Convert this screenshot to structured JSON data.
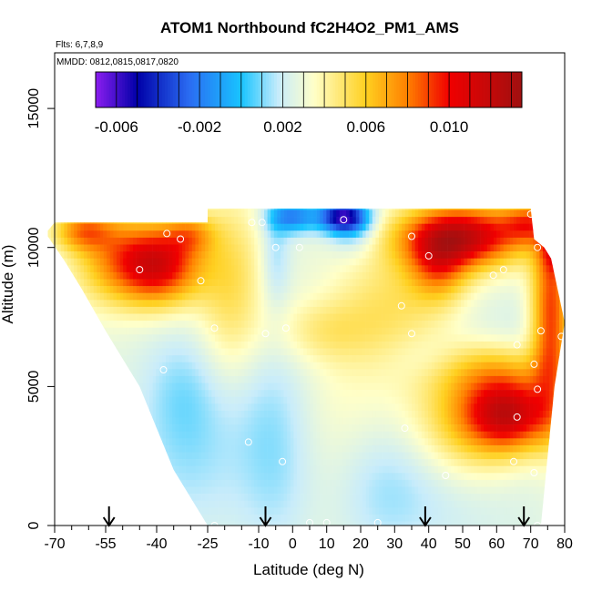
{
  "chart_data": {
    "type": "heatmap",
    "title": "ATOM1 Northbound fC2H4O2_PM1_AMS",
    "flights_label": "Flts: 6,7,8,9",
    "dates_label": "MMDD: 0812,0815,0817,0820",
    "xlabel": "Latitude (deg N)",
    "ylabel": "Altitude (m)",
    "xlim": [
      -70,
      80
    ],
    "ylim": [
      0,
      17000
    ],
    "x_ticks": [
      -70,
      -55,
      -40,
      -25,
      -10,
      0,
      10,
      20,
      30,
      40,
      50,
      60,
      70,
      80
    ],
    "x_tick_labels": [
      "-70",
      "-55",
      "-40",
      "-25",
      "-10",
      "0",
      "10",
      "20",
      "30",
      "40",
      "50",
      "60",
      "70",
      "80"
    ],
    "x_minor_ticks": [
      -65,
      -60,
      -50,
      -45,
      -35,
      -30,
      -20,
      -15,
      -5,
      5,
      15,
      25,
      35,
      45,
      55,
      65,
      75
    ],
    "y_ticks": [
      0,
      5000,
      10000,
      15000
    ],
    "y_tick_labels": [
      "0",
      "5000",
      "10000",
      "15000"
    ],
    "colorbar": {
      "range": [
        -0.007,
        0.0135
      ],
      "ticks": [
        -0.006,
        -0.002,
        0.002,
        0.006,
        0.01
      ],
      "tick_labels": [
        "-0.006",
        "-0.002",
        "0.002",
        "0.006",
        "0.010"
      ],
      "color_stops": [
        {
          "value": -0.007,
          "color": "#8b1ef0"
        },
        {
          "value": -0.005,
          "color": "#0000a8"
        },
        {
          "value": -0.0025,
          "color": "#2a6cf2"
        },
        {
          "value": 0.0,
          "color": "#18c4ff"
        },
        {
          "value": 0.0018,
          "color": "#c8ecfb"
        },
        {
          "value": 0.0035,
          "color": "#ffffc8"
        },
        {
          "value": 0.006,
          "color": "#ffd020"
        },
        {
          "value": 0.008,
          "color": "#ff8000"
        },
        {
          "value": 0.01,
          "color": "#f00000"
        },
        {
          "value": 0.0135,
          "color": "#a01010"
        }
      ]
    },
    "domain_outline": [
      [
        -72,
        10600
      ],
      [
        -70,
        10900
      ],
      [
        -25,
        10900
      ],
      [
        -25,
        11400
      ],
      [
        70,
        11400
      ],
      [
        71,
        10300
      ],
      [
        74,
        10000
      ],
      [
        76,
        9600
      ],
      [
        80,
        7300
      ],
      [
        77,
        5000
      ],
      [
        75,
        2500
      ],
      [
        73,
        0
      ],
      [
        -25,
        0
      ],
      [
        -35,
        2000
      ],
      [
        -45,
        5000
      ],
      [
        -55,
        7000
      ],
      [
        -62,
        8500
      ],
      [
        -67,
        9500
      ],
      [
        -72,
        10400
      ]
    ],
    "vertical_profile_arrows": [
      -54,
      -8,
      39,
      68
    ],
    "sample_points": [
      [
        -72,
        10850
      ],
      [
        -45,
        9200
      ],
      [
        -37,
        10500
      ],
      [
        -33,
        10300
      ],
      [
        -27,
        8800
      ],
      [
        -23,
        7100
      ],
      [
        -38,
        5600
      ],
      [
        -12,
        10900
      ],
      [
        -9,
        10900
      ],
      [
        -5,
        10000
      ],
      [
        -8,
        6900
      ],
      [
        -2,
        7100
      ],
      [
        2,
        10000
      ],
      [
        -3,
        2300
      ],
      [
        -13,
        3000
      ],
      [
        15,
        11000
      ],
      [
        35,
        10400
      ],
      [
        40,
        9700
      ],
      [
        32,
        7900
      ],
      [
        35,
        6900
      ],
      [
        33,
        3500
      ],
      [
        45,
        1800
      ],
      [
        59,
        9000
      ],
      [
        62,
        9200
      ],
      [
        66,
        6500
      ],
      [
        70,
        11200
      ],
      [
        72,
        10000
      ],
      [
        77,
        9900
      ],
      [
        73,
        7000
      ],
      [
        79,
        6800
      ],
      [
        71,
        5800
      ],
      [
        72,
        4900
      ],
      [
        66,
        3900
      ],
      [
        65,
        2300
      ],
      [
        71,
        1900
      ],
      [
        72,
        0
      ],
      [
        10,
        100
      ],
      [
        25,
        100
      ],
      [
        -23,
        0
      ],
      [
        -8,
        50
      ],
      [
        5,
        100
      ]
    ],
    "field_baseline": 0.0027,
    "field_components": [
      {
        "x": -40,
        "y": 9400,
        "sx": 9,
        "sy": 1000,
        "a": 0.0085
      },
      {
        "x": -55,
        "y": 9800,
        "sx": 8,
        "sy": 1300,
        "a": 0.003
      },
      {
        "x": -62,
        "y": 10600,
        "sx": 6,
        "sy": 500,
        "a": 0.004
      },
      {
        "x": -30,
        "y": 10500,
        "sx": 5,
        "sy": 500,
        "a": 0.003
      },
      {
        "x": -18,
        "y": 8500,
        "sx": 7,
        "sy": 2500,
        "a": 0.0025
      },
      {
        "x": 8,
        "y": 7000,
        "sx": 10,
        "sy": 800,
        "a": 0.0015
      },
      {
        "x": 30,
        "y": 8000,
        "sx": 12,
        "sy": 1500,
        "a": 0.002
      },
      {
        "x": 50,
        "y": 10400,
        "sx": 13,
        "sy": 800,
        "a": 0.009
      },
      {
        "x": 43,
        "y": 9300,
        "sx": 6,
        "sy": 900,
        "a": 0.004
      },
      {
        "x": 69,
        "y": 10900,
        "sx": 5,
        "sy": 500,
        "a": 0.004
      },
      {
        "x": 76,
        "y": 7500,
        "sx": 4,
        "sy": 2500,
        "a": 0.0065
      },
      {
        "x": 78,
        "y": 10000,
        "sx": 3,
        "sy": 600,
        "a": 0.004
      },
      {
        "x": 64,
        "y": 4000,
        "sx": 9,
        "sy": 900,
        "a": 0.0075
      },
      {
        "x": 52,
        "y": 3800,
        "sx": 12,
        "sy": 1700,
        "a": 0.0035
      },
      {
        "x": 60,
        "y": 5600,
        "sx": 12,
        "sy": 700,
        "a": 0.002
      },
      {
        "x": 18,
        "y": 4000,
        "sx": 12,
        "sy": 3000,
        "a": 0.001
      },
      {
        "x": 15,
        "y": 11100,
        "sx": 5,
        "sy": 400,
        "a": -0.0085
      },
      {
        "x": 0,
        "y": 11100,
        "sx": 5,
        "sy": 400,
        "a": -0.0045
      },
      {
        "x": -5,
        "y": 9800,
        "sx": 3,
        "sy": 1400,
        "a": -0.0015
      },
      {
        "x": 18,
        "y": 10500,
        "sx": 5,
        "sy": 600,
        "a": -0.0015
      },
      {
        "x": -32,
        "y": 5000,
        "sx": 8,
        "sy": 1500,
        "a": -0.0012
      },
      {
        "x": -30,
        "y": 2500,
        "sx": 12,
        "sy": 2000,
        "a": -0.0012
      },
      {
        "x": -5,
        "y": 2200,
        "sx": 8,
        "sy": 2300,
        "a": -0.0013
      },
      {
        "x": 25,
        "y": 1500,
        "sx": 10,
        "sy": 2000,
        "a": -0.0012
      },
      {
        "x": 45,
        "y": 1500,
        "sx": 18,
        "sy": 1600,
        "a": -0.0012
      },
      {
        "x": 60,
        "y": 7000,
        "sx": 14,
        "sy": 900,
        "a": -0.0006
      },
      {
        "x": 40,
        "y": 6000,
        "sx": 8,
        "sy": 600,
        "a": -0.0007
      },
      {
        "x": -10,
        "y": 5000,
        "sx": 10,
        "sy": 1800,
        "a": -0.0007
      }
    ]
  }
}
